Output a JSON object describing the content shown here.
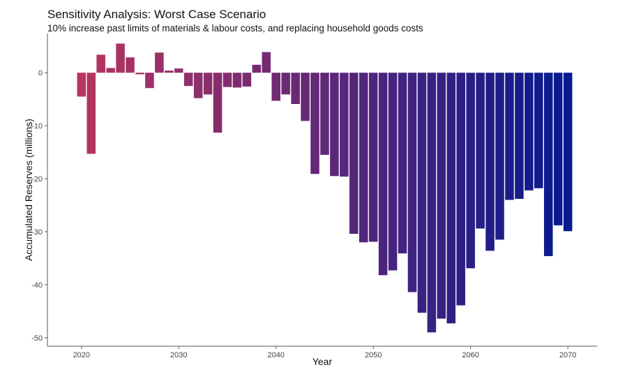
{
  "chart_data": {
    "type": "bar",
    "title": "Sensitivity Analysis: Worst Case Scenario",
    "subtitle": "10% increase past limits of materials & labour costs, and replacing household goods costs",
    "xlabel": "Year",
    "ylabel": "Accumulated Reserves (millions)",
    "xlim": [
      2016.5,
      2073.0
    ],
    "ylim": [
      -51.6,
      7.4
    ],
    "x_ticks": [
      "2020",
      "2030",
      "2040",
      "2050",
      "2060",
      "2070"
    ],
    "y_ticks": [
      "0",
      "-10",
      "-20",
      "-30",
      "-40",
      "-50"
    ],
    "grid": false,
    "legend": "none",
    "colors": {
      "start": "#b83560",
      "end": "#061a90",
      "axis": "#555555"
    },
    "x": [
      2020,
      2021,
      2022,
      2023,
      2024,
      2025,
      2026,
      2027,
      2028,
      2029,
      2030,
      2031,
      2032,
      2033,
      2034,
      2035,
      2036,
      2037,
      2038,
      2039,
      2040,
      2041,
      2042,
      2043,
      2044,
      2045,
      2046,
      2047,
      2048,
      2049,
      2050,
      2051,
      2052,
      2053,
      2054,
      2055,
      2056,
      2057,
      2058,
      2059,
      2060,
      2061,
      2062,
      2063,
      2064,
      2065,
      2066,
      2067,
      2068,
      2069,
      2070
    ],
    "values": [
      -4.5,
      -15.3,
      3.4,
      0.9,
      5.5,
      2.9,
      -0.3,
      -2.9,
      3.8,
      0.4,
      0.8,
      -2.5,
      -4.8,
      -4.1,
      -11.3,
      -2.7,
      -2.8,
      -2.6,
      1.5,
      3.9,
      -5.3,
      -4.1,
      -5.9,
      -9.1,
      -19.1,
      -15.5,
      -19.5,
      -19.6,
      -30.4,
      -32.0,
      -31.9,
      -38.2,
      -37.3,
      -34.1,
      -41.4,
      -45.3,
      -49.0,
      -46.4,
      -47.3,
      -43.9,
      -36.9,
      -29.4,
      -33.6,
      -31.5,
      -24.0,
      -23.8,
      -22.2,
      -21.8,
      -34.6,
      -28.8,
      -29.9
    ]
  }
}
